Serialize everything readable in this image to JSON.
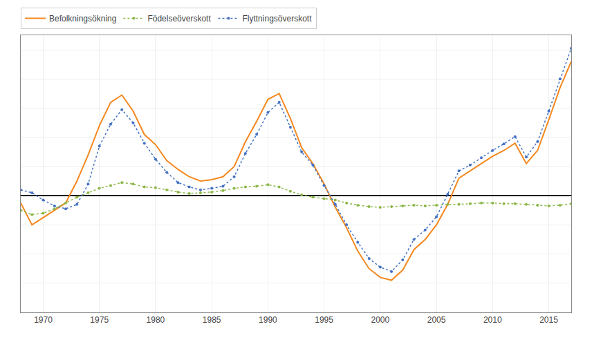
{
  "chart_data": {
    "type": "line",
    "x": [
      1968,
      1969,
      1970,
      1971,
      1972,
      1973,
      1974,
      1975,
      1976,
      1977,
      1978,
      1979,
      1980,
      1981,
      1982,
      1983,
      1984,
      1985,
      1986,
      1987,
      1988,
      1989,
      1990,
      1991,
      1992,
      1993,
      1994,
      1995,
      1996,
      1997,
      1998,
      1999,
      2000,
      2001,
      2002,
      2003,
      2004,
      2005,
      2006,
      2007,
      2008,
      2009,
      2010,
      2011,
      2012,
      2013,
      2014,
      2015,
      2016,
      2017
    ],
    "series": [
      {
        "name": "Befolkningsökning",
        "color": "#F5881F",
        "line_style": "solid",
        "marker": "none",
        "values": [
          -50,
          -200,
          -150,
          -100,
          -50,
          100,
          280,
          480,
          640,
          690,
          580,
          420,
          350,
          240,
          180,
          130,
          100,
          110,
          130,
          200,
          370,
          510,
          660,
          700,
          530,
          330,
          220,
          80,
          -80,
          -220,
          -380,
          -500,
          -560,
          -580,
          -510,
          -370,
          -300,
          -200,
          -60,
          120,
          170,
          220,
          270,
          310,
          360,
          220,
          310,
          520,
          740,
          920
        ]
      },
      {
        "name": "Födelseöverskott",
        "color": "#8DB748",
        "line_style": "dotted",
        "marker": "circle",
        "values": [
          -100,
          -130,
          -120,
          -90,
          -50,
          -10,
          20,
          50,
          70,
          90,
          80,
          60,
          55,
          40,
          25,
          15,
          20,
          25,
          35,
          50,
          60,
          65,
          75,
          60,
          30,
          5,
          -10,
          -20,
          -30,
          -50,
          -65,
          -75,
          -80,
          -75,
          -70,
          -65,
          -70,
          -65,
          -60,
          -60,
          -55,
          -50,
          -50,
          -55,
          -55,
          -60,
          -65,
          -70,
          -65,
          -55
        ]
      },
      {
        "name": "Flyttningsöverskott",
        "color": "#4472C4",
        "line_style": "dotted",
        "marker": "circle",
        "values": [
          40,
          20,
          -30,
          -70,
          -90,
          -60,
          80,
          340,
          490,
          590,
          500,
          360,
          250,
          160,
          90,
          60,
          40,
          50,
          65,
          130,
          290,
          420,
          570,
          640,
          470,
          300,
          210,
          70,
          -60,
          -200,
          -320,
          -430,
          -490,
          -520,
          -440,
          -300,
          -235,
          -145,
          10,
          170,
          210,
          260,
          310,
          355,
          405,
          265,
          370,
          580,
          800,
          1010
        ]
      }
    ],
    "xlim": [
      1968,
      2017
    ],
    "xticks": [
      1970,
      1975,
      1980,
      1985,
      1990,
      1995,
      2000,
      2005,
      2010,
      2015
    ],
    "ylim": [
      -800,
      1100
    ],
    "yticks": [
      -800,
      -600,
      -400,
      -200,
      0,
      200,
      400,
      600,
      800,
      1000
    ],
    "tick_labels": "x",
    "grid": true,
    "legend": "upper left"
  }
}
